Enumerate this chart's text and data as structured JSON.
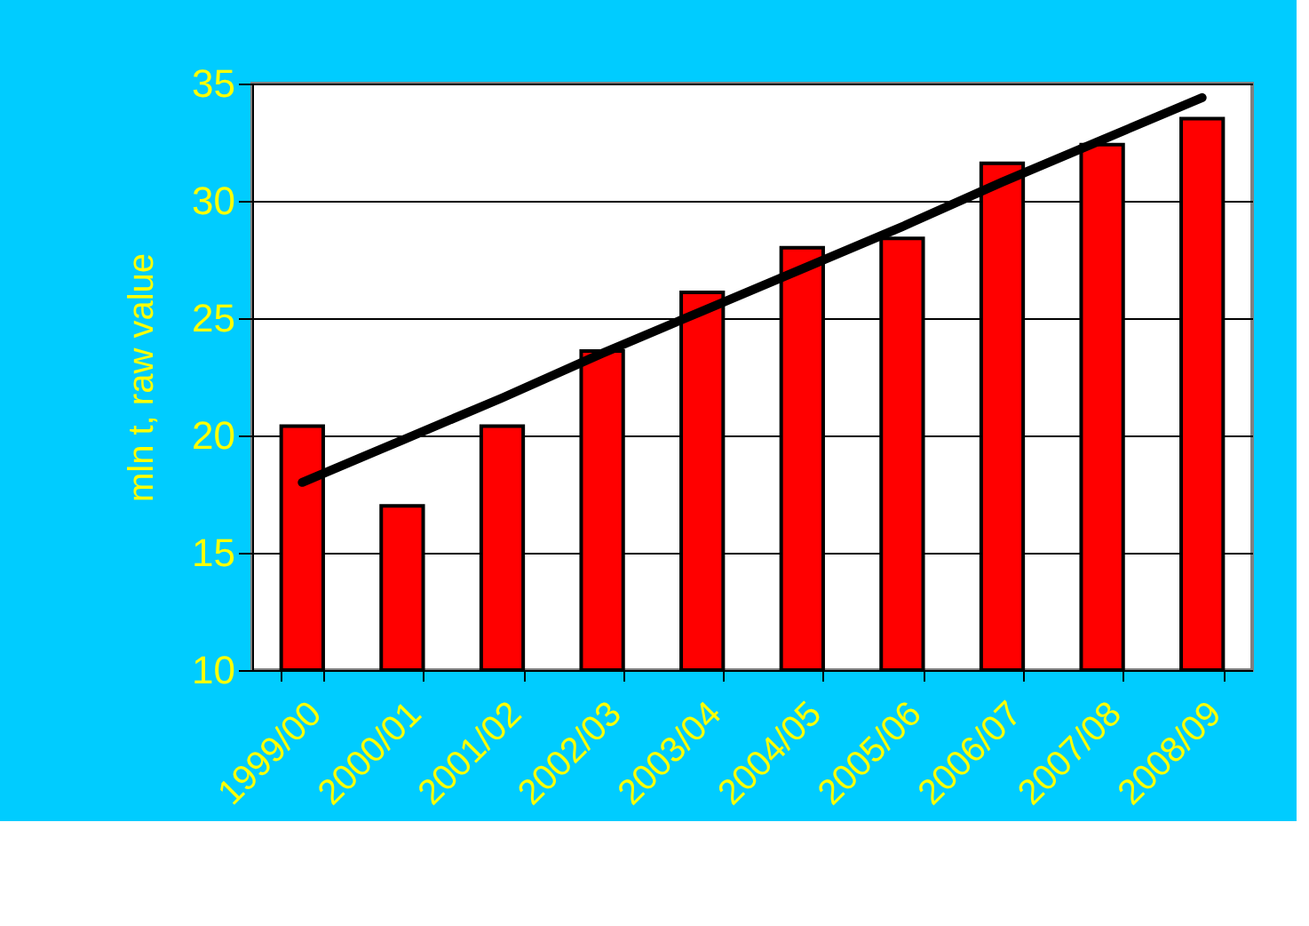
{
  "chart_data": {
    "type": "bar",
    "ylabel": "mln t, raw value",
    "categories": [
      "1999/00",
      "2000/01",
      "2001/02",
      "2002/03",
      "2003/04",
      "2004/05",
      "2005/06",
      "2006/07",
      "2007/08",
      "2008/09"
    ],
    "series": [
      {
        "color": "#ff0000",
        "values": [
          20.4,
          17.0,
          20.4,
          23.6,
          26.1,
          28.0,
          28.4,
          31.6,
          32.4,
          33.5
        ]
      },
      {
        "type": "line",
        "color": "#000000",
        "values": [
          18.0,
          19.8,
          21.6,
          23.5,
          25.3,
          27.1,
          28.9,
          30.8,
          32.6,
          34.4
        ]
      }
    ],
    "ylim": [
      10,
      35
    ],
    "yticks": [
      10,
      15,
      20,
      25,
      30,
      35
    ],
    "grid": "y"
  }
}
